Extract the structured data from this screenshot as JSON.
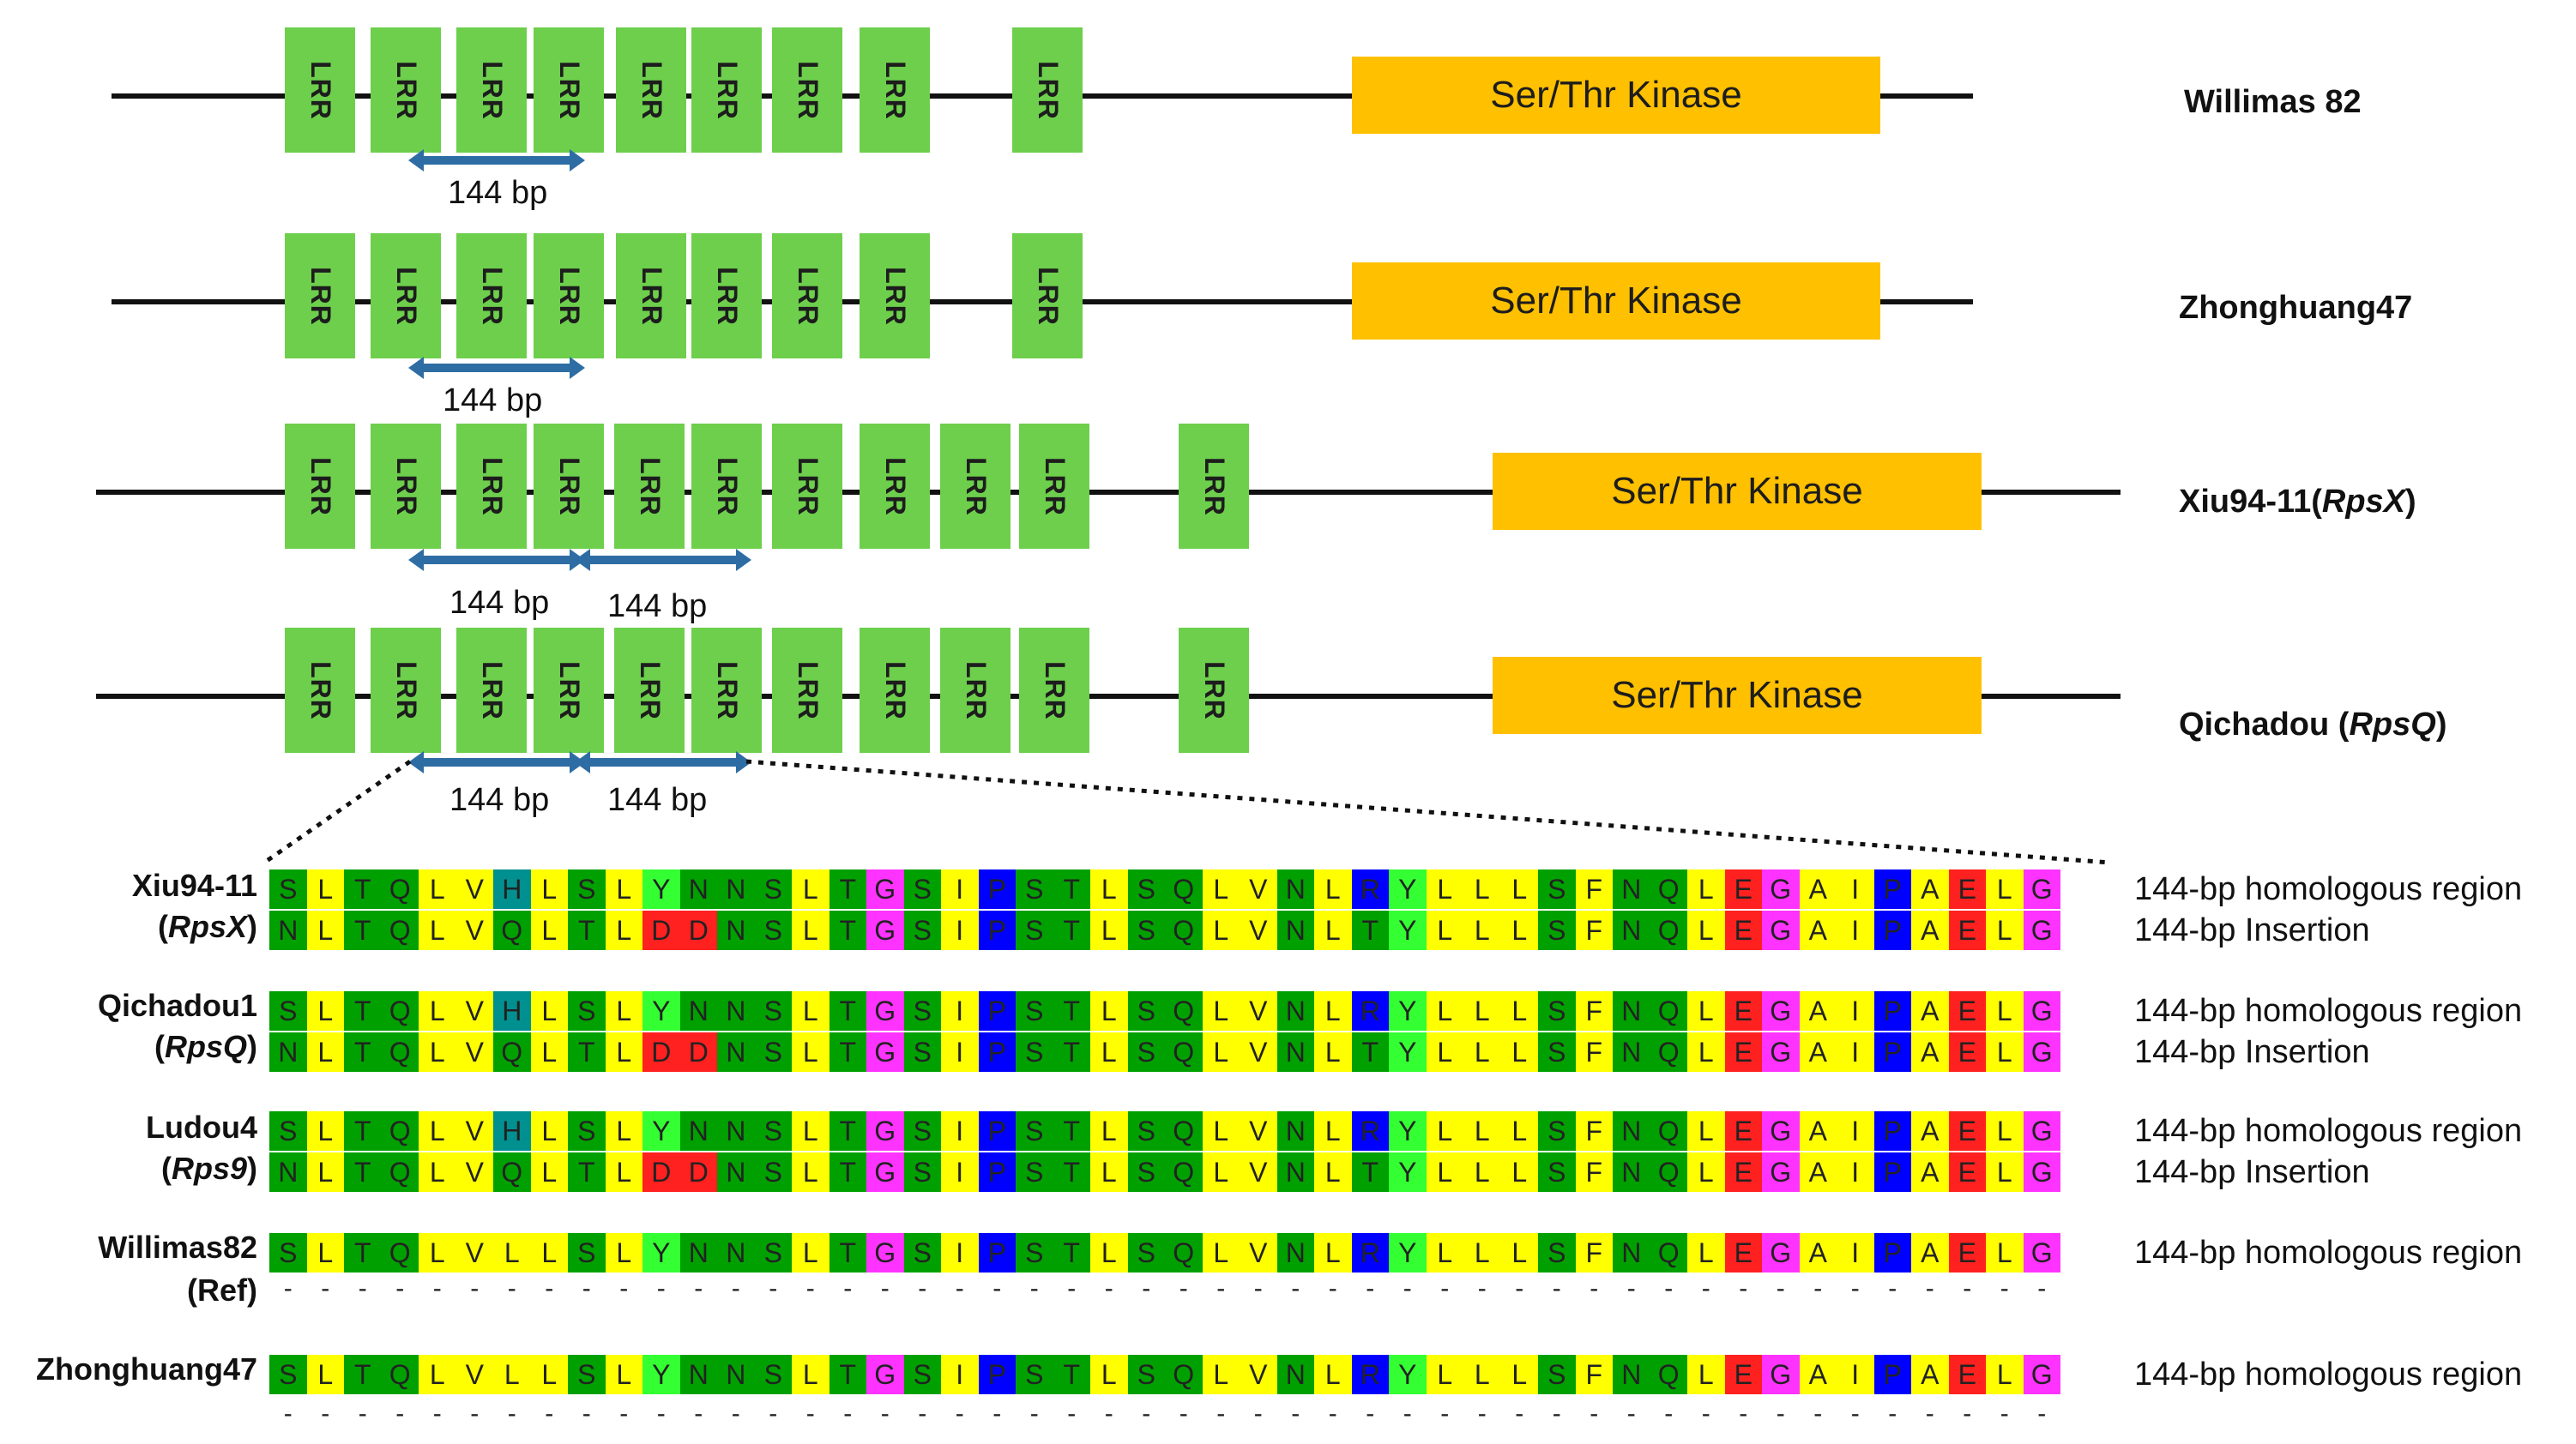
{
  "colors": {
    "lrr": "#6dcf4c",
    "kinase": "#ffc000",
    "arrow": "#2e6da4"
  },
  "genes": [
    {
      "label": "Willimas 82",
      "label_parts": [
        "Willimas 82"
      ],
      "lrr_label": "LRR",
      "kinase_label": "Ser/Thr Kinase",
      "bp_labels": [
        "144 bp"
      ]
    },
    {
      "label": "Zhonghuang47",
      "label_parts": [
        "Zhonghuang47"
      ],
      "lrr_label": "LRR",
      "kinase_label": "Ser/Thr Kinase",
      "bp_labels": [
        "144 bp"
      ]
    },
    {
      "label": "Xiu94-11(RpsX)",
      "label_parts": [
        "Xiu94-11(",
        "RpsX",
        ")"
      ],
      "lrr_label": "LRR",
      "kinase_label": "Ser/Thr Kinase",
      "bp_labels": [
        "144 bp",
        "144 bp"
      ]
    },
    {
      "label": "Qichadou (RpsQ)",
      "label_parts": [
        "Qichadou (",
        "RpsQ",
        ")"
      ],
      "lrr_label": "LRR",
      "kinase_label": "Ser/Thr Kinase",
      "bp_labels": [
        "144 bp",
        "144 bp"
      ]
    }
  ],
  "alignment": {
    "color_map": {
      "S": "#00a000",
      "T": "#00a000",
      "Q": "#00a000",
      "N": "#00a000",
      "L": "#ffff00",
      "V": "#ffff00",
      "I": "#ffff00",
      "A": "#ffff00",
      "F": "#ffff00",
      "G": "#ff33ff",
      "P": "#0000ff",
      "R": "#0000ff",
      "Y": "#33ff33",
      "H": "#009090",
      "E": "#ff2020",
      "D": "#ff2020"
    },
    "samples": [
      {
        "name_line1": "Xiu94-11",
        "name_line2_parts": [
          "(",
          "RpsX",
          ")"
        ],
        "rows": [
          {
            "seq": "SLTQLVHLSLYNNSLTGSIPSTLSQLVNLRYLLLSFNQLEGAIPAELG",
            "desc": "144-bp homologous region"
          },
          {
            "seq": "NLTQLVQLTLDDNSLTGSIPSTLSQLVNLTYLLLSFNQLEGAIPAELG",
            "desc": "144-bp Insertion"
          }
        ]
      },
      {
        "name_line1": "Qichadou1",
        "name_line2_parts": [
          "(",
          "RpsQ",
          ")"
        ],
        "rows": [
          {
            "seq": "SLTQLVHLSLYNNSLTGSIPSTLSQLVNLRYLLLSFNQLEGAIPAELG",
            "desc": "144-bp homologous region"
          },
          {
            "seq": "NLTQLVQLTLDDNSLTGSIPSTLSQLVNLTYLLLSFNQLEGAIPAELG",
            "desc": "144-bp Insertion"
          }
        ]
      },
      {
        "name_line1": "Ludou4",
        "name_line2_parts": [
          "(",
          "Rps9",
          ")"
        ],
        "rows": [
          {
            "seq": "SLTQLVHLSLYNNSLTGSIPSTLSQLVNLRYLLLSFNQLEGAIPAELG",
            "desc": "144-bp homologous region"
          },
          {
            "seq": "NLTQLVQLTLDDNSLTGSIPSTLSQLVNLTYLLLSFNQLEGAIPAELG",
            "desc": "144-bp Insertion"
          }
        ]
      },
      {
        "name_line1": "Willimas82",
        "name_line2_parts": [
          "(Ref)"
        ],
        "rows": [
          {
            "seq": "SLTQLVLLSLYNNSLTGSIPSTLSQLVNLRYLLLSFNQLEGAIPAELG",
            "desc": "144-bp homologous region"
          }
        ],
        "dashes": true
      },
      {
        "name_line1": "Zhonghuang47",
        "name_line2_parts": [],
        "rows": [
          {
            "seq": "SLTQLVLLSLYNNSLTGSIPSTLSQLVNLRYLLLSFNQLEGAIPAELG",
            "desc": "144-bp homologous region"
          }
        ],
        "dashes": true
      }
    ]
  }
}
